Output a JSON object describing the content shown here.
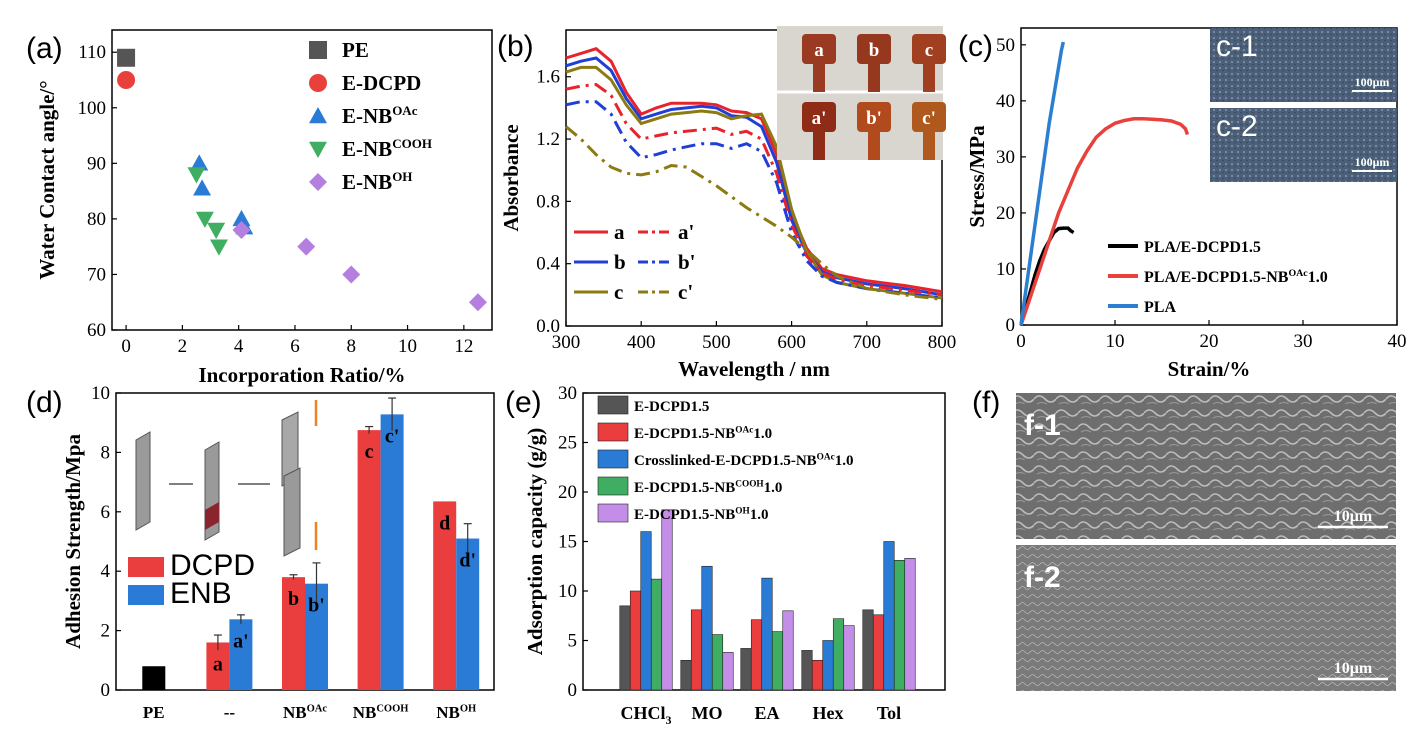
{
  "panel_labels": [
    "(a)",
    "(b)",
    "(c)",
    "(d)",
    "(e)",
    "(f)"
  ],
  "chart_data": [
    {
      "panel": "(a)",
      "type": "scatter",
      "xlabel": "Incorporation Ratio/%",
      "ylabel": "Water Contact angle/°",
      "xlim": [
        -0.5,
        13
      ],
      "ylim": [
        60,
        114
      ],
      "xticks": [
        "0",
        "2",
        "4",
        "6",
        "8",
        "10",
        "12"
      ],
      "yticks": [
        "60",
        "70",
        "80",
        "90",
        "100",
        "110"
      ],
      "legend_position": "top-right",
      "series": [
        {
          "name": "PE",
          "sup": "",
          "marker": "square",
          "color": "#555555",
          "points": [
            [
              0,
              109
            ]
          ]
        },
        {
          "name": "E-DCPD",
          "sup": "",
          "marker": "circle",
          "color": "#e8413b",
          "points": [
            [
              0,
              105
            ]
          ]
        },
        {
          "name": "E-NB",
          "sup": "OAc",
          "marker": "triangle-up",
          "color": "#2a7bd5",
          "points": [
            [
              2.6,
              90
            ],
            [
              2.7,
              85.5
            ],
            [
              4.1,
              80
            ],
            [
              4.2,
              78.5
            ]
          ]
        },
        {
          "name": "E-NB",
          "sup": "COOH",
          "marker": "triangle-down",
          "color": "#3fae62",
          "points": [
            [
              2.5,
              88
            ],
            [
              2.8,
              80
            ],
            [
              3.2,
              78
            ],
            [
              3.3,
              75
            ]
          ]
        },
        {
          "name": "E-NB",
          "sup": "OH",
          "marker": "diamond",
          "color": "#b57fe0",
          "points": [
            [
              4.1,
              78
            ],
            [
              6.4,
              75
            ],
            [
              8,
              70
            ],
            [
              12.5,
              65
            ]
          ]
        }
      ]
    },
    {
      "panel": "(b)",
      "type": "line",
      "xlabel": "Wavelength / nm",
      "ylabel": "Absorbance",
      "xlim": [
        300,
        800
      ],
      "ylim": [
        0,
        1.9
      ],
      "xticks": [
        "300",
        "400",
        "500",
        "600",
        "700",
        "800"
      ],
      "yticks": [
        "0.0",
        "0.4",
        "0.8",
        "1.2",
        "1.6"
      ],
      "inset_labels": [
        "a",
        "b",
        "c",
        "a'",
        "b'",
        "c'"
      ],
      "series": [
        {
          "name": "a",
          "color": "#e8232b",
          "dash": "solid",
          "x": [
            300,
            320,
            340,
            360,
            380,
            400,
            420,
            440,
            460,
            480,
            500,
            520,
            540,
            560,
            580,
            600,
            620,
            640,
            660,
            700,
            750,
            800
          ],
          "y": [
            1.72,
            1.75,
            1.78,
            1.7,
            1.5,
            1.36,
            1.4,
            1.43,
            1.43,
            1.43,
            1.42,
            1.38,
            1.37,
            1.33,
            1.1,
            0.72,
            0.5,
            0.37,
            0.33,
            0.29,
            0.26,
            0.22
          ]
        },
        {
          "name": "b",
          "color": "#1f3fd6",
          "dash": "solid",
          "x": [
            300,
            320,
            340,
            360,
            380,
            400,
            420,
            440,
            460,
            480,
            500,
            520,
            540,
            560,
            580,
            600,
            620,
            640,
            660,
            700,
            750,
            800
          ],
          "y": [
            1.67,
            1.7,
            1.72,
            1.64,
            1.46,
            1.33,
            1.36,
            1.39,
            1.4,
            1.41,
            1.4,
            1.35,
            1.34,
            1.28,
            1.05,
            0.68,
            0.47,
            0.35,
            0.31,
            0.27,
            0.24,
            0.2
          ]
        },
        {
          "name": "c",
          "color": "#8c7a12",
          "dash": "solid",
          "x": [
            300,
            320,
            340,
            360,
            380,
            400,
            420,
            440,
            460,
            480,
            500,
            520,
            540,
            560,
            580,
            600,
            620,
            640,
            660,
            700,
            750,
            800
          ],
          "y": [
            1.63,
            1.66,
            1.66,
            1.58,
            1.42,
            1.3,
            1.33,
            1.36,
            1.37,
            1.38,
            1.37,
            1.33,
            1.35,
            1.36,
            1.15,
            0.75,
            0.48,
            0.33,
            0.28,
            0.24,
            0.21,
            0.18
          ]
        },
        {
          "name": "a'",
          "color": "#e8232b",
          "dash": "dashdot",
          "x": [
            300,
            320,
            340,
            360,
            380,
            400,
            420,
            440,
            460,
            480,
            500,
            520,
            540,
            560,
            580,
            600,
            620,
            640,
            660,
            700,
            750,
            800
          ],
          "y": [
            1.52,
            1.54,
            1.55,
            1.48,
            1.3,
            1.2,
            1.22,
            1.24,
            1.25,
            1.26,
            1.27,
            1.23,
            1.25,
            1.2,
            0.98,
            0.65,
            0.45,
            0.34,
            0.3,
            0.26,
            0.23,
            0.2
          ]
        },
        {
          "name": "b'",
          "color": "#1f3fd6",
          "dash": "dashdot",
          "x": [
            300,
            320,
            340,
            360,
            380,
            400,
            420,
            440,
            460,
            480,
            500,
            520,
            540,
            560,
            580,
            600,
            620,
            640,
            660,
            700,
            750,
            800
          ],
          "y": [
            1.42,
            1.44,
            1.44,
            1.36,
            1.18,
            1.08,
            1.1,
            1.13,
            1.15,
            1.17,
            1.17,
            1.14,
            1.17,
            1.12,
            0.92,
            0.6,
            0.42,
            0.32,
            0.28,
            0.24,
            0.21,
            0.18
          ]
        },
        {
          "name": "c'",
          "color": "#8c7a12",
          "dash": "dashdot",
          "x": [
            300,
            320,
            340,
            360,
            380,
            400,
            420,
            440,
            460,
            480,
            500,
            520,
            540,
            560,
            580,
            600,
            620,
            640,
            660,
            700,
            750,
            800
          ],
          "y": [
            1.28,
            1.2,
            1.1,
            1.02,
            0.98,
            0.97,
            0.99,
            1.03,
            1.02,
            0.96,
            0.9,
            0.83,
            0.76,
            0.7,
            0.64,
            0.57,
            0.49,
            0.4,
            0.32,
            0.24,
            0.2,
            0.17
          ]
        }
      ]
    },
    {
      "panel": "(c)",
      "type": "line",
      "xlabel": "Strain/%",
      "ylabel": "Stress/MPa",
      "xlim": [
        0,
        40
      ],
      "ylim": [
        0,
        53
      ],
      "xticks": [
        "0",
        "10",
        "20",
        "30",
        "40"
      ],
      "yticks": [
        "0",
        "10",
        "20",
        "30",
        "40",
        "50"
      ],
      "inset_labels": [
        "c-1",
        "c-2"
      ],
      "scale_bar": "100μm",
      "series": [
        {
          "name": "PLA/E-DCPD1.5",
          "sup": "",
          "color": "#000000",
          "x": [
            0,
            0.5,
            1,
            1.5,
            2,
            2.5,
            3,
            3.5,
            4,
            4.5,
            5,
            5.3,
            5.6
          ],
          "y": [
            0,
            3,
            6,
            9,
            11.5,
            13.5,
            15,
            16.5,
            17.2,
            17.3,
            17.3,
            16.8,
            16.5
          ]
        },
        {
          "name": "PLA/E-DCPD1.5-NB",
          "sup": "OAc",
          "suffix": "1.0",
          "color": "#e8413b",
          "x": [
            0,
            1,
            2,
            3,
            4,
            5,
            6,
            7,
            8,
            9,
            10,
            11,
            12,
            13,
            14,
            15,
            16,
            17,
            17.5,
            17.7
          ],
          "y": [
            0,
            5,
            10,
            15,
            20,
            24,
            28,
            31,
            33.5,
            35,
            36,
            36.5,
            36.8,
            36.8,
            36.7,
            36.6,
            36.4,
            35.8,
            35,
            34
          ]
        },
        {
          "name": "PLA",
          "sup": "",
          "color": "#2c7fd0",
          "x": [
            0,
            0.5,
            1,
            1.5,
            2,
            2.5,
            3,
            3.5,
            4,
            4.3,
            4.5
          ],
          "y": [
            0,
            6,
            12,
            18,
            24,
            30,
            36,
            41,
            46,
            49,
            50.5
          ]
        }
      ]
    },
    {
      "panel": "(d)",
      "type": "bar",
      "ylabel": "Adhesion Strength/Mpa",
      "ylim": [
        0,
        10
      ],
      "yticks": [
        "0",
        "2",
        "4",
        "6",
        "8",
        "10"
      ],
      "categories": [
        {
          "main": "PE",
          "sup": ""
        },
        {
          "main": "--",
          "sup": ""
        },
        {
          "main": "NB",
          "sup": "OAc"
        },
        {
          "main": "NB",
          "sup": "COOH"
        },
        {
          "main": "NB",
          "sup": "OH"
        }
      ],
      "pe_value": 0.8,
      "pe_color": "#000000",
      "series": [
        {
          "name": "DCPD",
          "color": "#ea3d3d",
          "values": [
            null,
            1.6,
            3.8,
            8.75,
            6.35
          ],
          "errors": [
            null,
            0.25,
            0.08,
            0.12,
            0.0
          ],
          "labels": [
            "",
            "a",
            "b",
            "c",
            "d"
          ]
        },
        {
          "name": "ENB",
          "color": "#2a7bd5",
          "values": [
            null,
            2.38,
            3.58,
            9.28,
            5.1
          ],
          "errors": [
            null,
            0.15,
            0.7,
            0.55,
            0.5
          ],
          "labels": [
            "",
            "a'",
            "b'",
            "c'",
            "d'"
          ]
        }
      ]
    },
    {
      "panel": "(e)",
      "type": "bar",
      "ylabel": "Adsorption capacity (g/g)",
      "ylim": [
        0,
        30
      ],
      "yticks": [
        "0",
        "5",
        "10",
        "15",
        "20",
        "25",
        "30"
      ],
      "categories": [
        {
          "main": "CHCl",
          "sub": "3"
        },
        {
          "main": "MO",
          "sub": ""
        },
        {
          "main": "EA",
          "sub": ""
        },
        {
          "main": "Hex",
          "sub": ""
        },
        {
          "main": "Tol",
          "sub": ""
        }
      ],
      "series": [
        {
          "name": "E-DCPD1.5",
          "sup": "",
          "suffix": "",
          "color": "#555555",
          "values": [
            8.5,
            3.0,
            4.2,
            4.0,
            8.1
          ]
        },
        {
          "name": "E-DCPD1.5-NB",
          "sup": "OAc",
          "suffix": "1.0",
          "color": "#ea3d3d",
          "values": [
            10.0,
            8.1,
            7.1,
            3.0,
            7.6
          ]
        },
        {
          "name": "Crosslinked-E-DCPD1.5-NB",
          "sup": "OAc",
          "suffix": "1.0",
          "color": "#2a7bd5",
          "values": [
            16.0,
            12.5,
            11.3,
            5.0,
            15.0
          ]
        },
        {
          "name": "E-DCPD1.5-NB",
          "sup": "COOH",
          "suffix": "1.0",
          "color": "#3fae62",
          "values": [
            11.2,
            5.6,
            5.9,
            7.2,
            13.1
          ]
        },
        {
          "name": "E-DCPD1.5-NB",
          "sup": "OH",
          "suffix": "1.0",
          "color": "#c48ee8",
          "values": [
            18.2,
            3.8,
            8.0,
            6.5,
            13.3
          ]
        }
      ]
    }
  ],
  "panel_f": {
    "labels": [
      "f-1",
      "f-2"
    ],
    "scale_bar": "10μm"
  }
}
